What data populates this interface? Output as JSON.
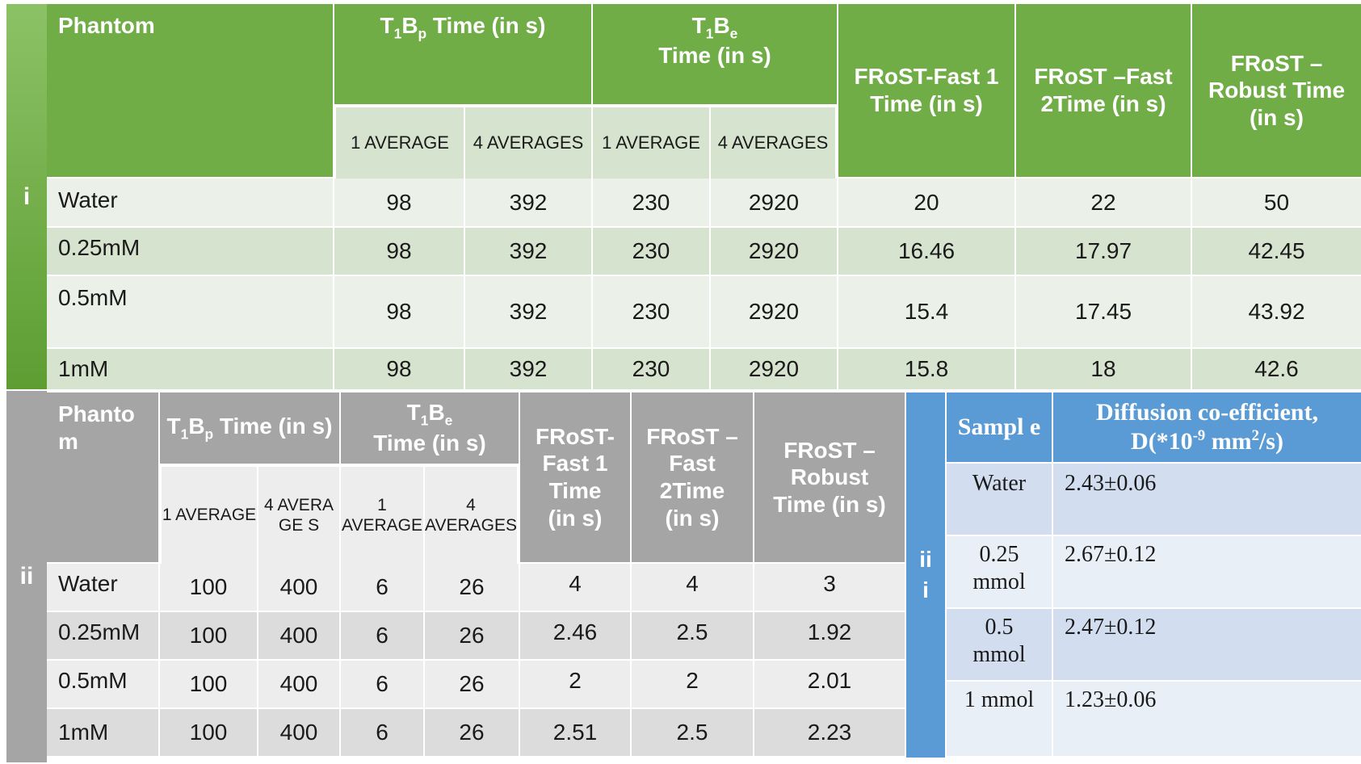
{
  "tables": {
    "i": {
      "side_label": "i",
      "header": {
        "phantom": "Phantom",
        "t1bp_pre": "T",
        "t1bp_sub1": "1",
        "t1bp_mid": "B",
        "t1bp_sub2": "p",
        "t1bp_post": " Time (in s)",
        "t1be_line1_pre": "T",
        "t1be_line1_sub1": "1",
        "t1be_line1_mid": "B",
        "t1be_line1_sub2": "e",
        "t1be_line2": "Time (in s)",
        "frost_fast1": "FRoST-Fast 1 Time (in s)",
        "frost_fast2": "FRoST –Fast 2Time (in s)",
        "frost_robust": "FRoST – Robust Time (in s)",
        "avg1": "1 AVERAGE",
        "avg4": "4 AVERAGES",
        "avg1b": "1 AVERAGE",
        "avg4b": "4 AVERAGES"
      },
      "rows": [
        {
          "label": "Water",
          "c1": "98",
          "c2": "392",
          "c3": "230",
          "c4": "2920",
          "c5": "20",
          "c6": "22",
          "c7": "50"
        },
        {
          "label": "0.25mM",
          "c1": "98",
          "c2": "392",
          "c3": "230",
          "c4": "2920",
          "c5": "16.46",
          "c6": "17.97",
          "c7": "42.45"
        },
        {
          "label": "0.5mM",
          "c1": "98",
          "c2": "392",
          "c3": "230",
          "c4": "2920",
          "c5": "15.4",
          "c6": "17.45",
          "c7": "43.92"
        },
        {
          "label": "1mM",
          "c1": "98",
          "c2": "392",
          "c3": "230",
          "c4": "2920",
          "c5": "15.8",
          "c6": "18",
          "c7": "42.6"
        }
      ]
    },
    "ii": {
      "side_label": "ii",
      "header": {
        "phantom": "Phanto m",
        "t1bp_pre": "T",
        "t1bp_sub1": "1",
        "t1bp_mid": "B",
        "t1bp_sub2": "p",
        "t1bp_post": " Time (in s)",
        "t1be_line1_pre": "T",
        "t1be_line1_sub1": "1",
        "t1be_line1_mid": "B",
        "t1be_line1_sub2": "e",
        "t1be_line2": "Time (in s)",
        "frost_fast1": "FRoST- Fast 1 Time (in s)",
        "frost_fast2": "FRoST – Fast 2Time (in s)",
        "frost_robust": "FRoST – Robust Time (in s)",
        "avg1": "1 AVERAGE",
        "avg4": "4 AVERAGE S",
        "avg1b": "1 AVERAGE",
        "avg4b": "4 AVERAGES"
      },
      "rows": [
        {
          "label": "Water",
          "c1": "100",
          "c2": "400",
          "c3": "6",
          "c4": "26",
          "c5": "4",
          "c6": "4",
          "c7": "3"
        },
        {
          "label": "0.25mM",
          "c1": "100",
          "c2": "400",
          "c3": "6",
          "c4": "26",
          "c5": "2.46",
          "c6": "2.5",
          "c7": "1.92"
        },
        {
          "label": "0.5mM",
          "c1": "100",
          "c2": "400",
          "c3": "6",
          "c4": "26",
          "c5": "2",
          "c6": "2",
          "c7": "2.01"
        },
        {
          "label": "1mM",
          "c1": "100",
          "c2": "400",
          "c3": "6",
          "c4": "26",
          "c5": "2.51",
          "c6": "2.5",
          "c7": "2.23"
        }
      ]
    },
    "iii": {
      "side_label": "ii i",
      "header": {
        "sample": "Sampl e",
        "diffusion_line1": "Diffusion co-efficient,",
        "diffusion_line2_pre": "D(*10",
        "diffusion_line2_sup1": "-9",
        "diffusion_line2_mid": " mm",
        "diffusion_line2_sup2": "2",
        "diffusion_line2_post": "/s)"
      },
      "rows": [
        {
          "sample": "Water",
          "value": "2.43±0.06"
        },
        {
          "sample": "0.25 mmol",
          "value": "2.67±0.12"
        },
        {
          "sample": "0.5 mmol",
          "value": "2.47±0.12"
        },
        {
          "sample": "1 mmol",
          "value": "1.23±0.06"
        }
      ]
    }
  },
  "colors": {
    "green_header": "#70ad47",
    "green_row_light": "#ebf1e9",
    "green_row_dark": "#d6e3cf",
    "gray_header": "#a5a5a5",
    "gray_row_light": "#ededed",
    "gray_row_dark": "#dcdcdc",
    "blue_header": "#5b9bd5",
    "blue_row_light": "#e9eff7",
    "blue_row_dark": "#d2deef"
  }
}
